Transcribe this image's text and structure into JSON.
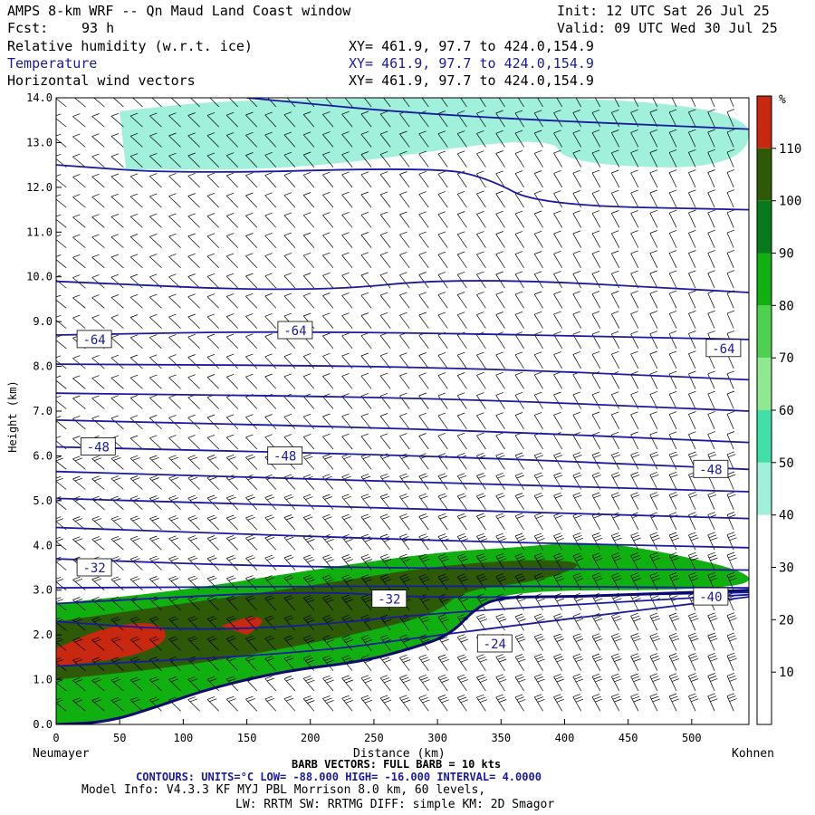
{
  "header": {
    "title": "AMPS 8-km WRF -- Qn Maud Land Coast window",
    "init": "Init: 12 UTC Sat 26 Jul 25",
    "fcst_label": "Fcst:",
    "fcst_value": "93 h",
    "valid": "Valid: 09 UTC Wed 30 Jul 25",
    "fields": [
      {
        "name": "Relative humidity (w.r.t. ice)",
        "xy": "XY= 461.9, 97.7 to 424.0,154.9"
      },
      {
        "name": "Temperature",
        "xy": "XY= 461.9, 97.7 to 424.0,154.9"
      },
      {
        "name": "Horizontal wind vectors",
        "xy": "XY= 461.9, 97.7 to 424.0,154.9"
      }
    ]
  },
  "chart_data": {
    "type": "heatmap",
    "title": "AMPS 8-km WRF -- Qn Maud Land Coast window",
    "xlabel": "Distance (km)",
    "ylabel": "Height (km)",
    "xlim": [
      0,
      545
    ],
    "ylim": [
      0,
      14
    ],
    "x_ticks": [
      "0",
      "50",
      "100",
      "150",
      "200",
      "250",
      "300",
      "350",
      "400",
      "450",
      "500"
    ],
    "y_ticks": [
      "0.0",
      "1.0",
      "2.0",
      "3.0",
      "4.0",
      "5.0",
      "6.0",
      "7.0",
      "8.0",
      "9.0",
      "10.0",
      "11.0",
      "12.0",
      "13.0",
      "14.0"
    ],
    "left_endpoint": "Neumayer",
    "right_endpoint": "Kohnen",
    "colorbar": {
      "unit": "%",
      "labels": [
        "10",
        "20",
        "30",
        "40",
        "50",
        "60",
        "70",
        "80",
        "90",
        "100",
        "110"
      ],
      "colors": [
        "#ffffff",
        "#ffffff",
        "#ffffff",
        "#a0f0dc",
        "#40e0a8",
        "#90e890",
        "#50d050",
        "#10b010",
        "#067a1c",
        "#2e5a08",
        "#c82810"
      ]
    },
    "rh_regions": [
      {
        "level": "30-40%",
        "color": "#a0f0dc",
        "outline": [
          [
            50,
            13.7
          ],
          [
            150,
            14
          ],
          [
            545,
            14
          ],
          [
            545,
            12.4
          ],
          [
            400,
            12.5
          ],
          [
            390,
            13.2
          ],
          [
            200,
            12.4
          ],
          [
            55,
            12.4
          ]
        ]
      },
      {
        "level": ">=50%",
        "color": "#10b010",
        "outline": [
          [
            0,
            2.7
          ],
          [
            100,
            3.0
          ],
          [
            200,
            3.45
          ],
          [
            300,
            3.85
          ],
          [
            360,
            3.95
          ],
          [
            420,
            4.1
          ],
          [
            480,
            3.85
          ],
          [
            545,
            3.4
          ],
          [
            545,
            3.1
          ],
          [
            480,
            3.0
          ],
          [
            400,
            3.0
          ],
          [
            350,
            2.9
          ],
          [
            330,
            2.6
          ],
          [
            310,
            2.0
          ],
          [
            280,
            1.7
          ],
          [
            240,
            1.4
          ],
          [
            180,
            1.2
          ],
          [
            120,
            0.8
          ],
          [
            80,
            0.4
          ],
          [
            40,
            0.05
          ],
          [
            0,
            0
          ]
        ]
      },
      {
        "level": ">=100%",
        "color": "#2e5a08",
        "outline": [
          [
            0,
            2.3
          ],
          [
            100,
            2.7
          ],
          [
            200,
            3.1
          ],
          [
            300,
            3.55
          ],
          [
            380,
            3.7
          ],
          [
            420,
            3.6
          ],
          [
            380,
            3.2
          ],
          [
            320,
            3.0
          ],
          [
            300,
            2.5
          ],
          [
            250,
            2.1
          ],
          [
            180,
            1.7
          ],
          [
            100,
            1.3
          ],
          [
            0,
            1.0
          ]
        ]
      },
      {
        "level": ">=110%",
        "color": "#c82810",
        "outline": [
          [
            0,
            1.7
          ],
          [
            40,
            2.2
          ],
          [
            80,
            2.3
          ],
          [
            90,
            1.9
          ],
          [
            60,
            1.5
          ],
          [
            0,
            1.3
          ]
        ]
      },
      {
        "level": ">=110%",
        "color": "#c82810",
        "outline": [
          [
            130,
            2.2
          ],
          [
            155,
            2.45
          ],
          [
            165,
            2.3
          ],
          [
            150,
            2.0
          ]
        ]
      }
    ],
    "terrain": [
      [
        0,
        0
      ],
      [
        40,
        0.05
      ],
      [
        80,
        0.4
      ],
      [
        120,
        0.8
      ],
      [
        180,
        1.2
      ],
      [
        240,
        1.4
      ],
      [
        280,
        1.7
      ],
      [
        310,
        2.0
      ],
      [
        330,
        2.6
      ],
      [
        350,
        2.85
      ],
      [
        400,
        2.85
      ],
      [
        450,
        2.9
      ],
      [
        500,
        2.95
      ],
      [
        545,
        3.0
      ]
    ],
    "temperature_contours_degC": {
      "low": "-88.000",
      "high": "-16.000",
      "interval": "4.0000",
      "lines": [
        [
          [
            0,
            12.5
          ],
          [
            100,
            12.3
          ],
          [
            300,
            12.45
          ],
          [
            340,
            12.2
          ],
          [
            380,
            11.6
          ],
          [
            545,
            11.5
          ]
        ],
        [
          [
            150,
            14
          ],
          [
            300,
            13.6
          ],
          [
            545,
            13.3
          ]
        ],
        [
          [
            0,
            9.9
          ],
          [
            200,
            9.65
          ],
          [
            320,
            10.0
          ],
          [
            545,
            9.65
          ]
        ],
        [
          [
            0,
            8.7
          ],
          [
            200,
            8.8
          ],
          [
            545,
            8.6
          ]
        ],
        [
          [
            0,
            8.05
          ],
          [
            300,
            8.0
          ],
          [
            545,
            7.7
          ]
        ],
        [
          [
            0,
            7.4
          ],
          [
            300,
            7.3
          ],
          [
            545,
            7.0
          ]
        ],
        [
          [
            0,
            6.8
          ],
          [
            300,
            6.6
          ],
          [
            545,
            6.3
          ]
        ],
        [
          [
            0,
            6.2
          ],
          [
            300,
            6.0
          ],
          [
            545,
            5.7
          ]
        ],
        [
          [
            0,
            5.65
          ],
          [
            300,
            5.4
          ],
          [
            545,
            5.2
          ]
        ],
        [
          [
            0,
            5.05
          ],
          [
            300,
            4.8
          ],
          [
            545,
            4.6
          ]
        ],
        [
          [
            0,
            4.4
          ],
          [
            300,
            4.1
          ],
          [
            545,
            3.95
          ]
        ],
        [
          [
            0,
            3.7
          ],
          [
            200,
            3.5
          ],
          [
            545,
            3.45
          ]
        ],
        [
          [
            0,
            3.05
          ],
          [
            300,
            3.1
          ],
          [
            545,
            3.05
          ]
        ],
        [
          [
            0,
            2.7
          ],
          [
            200,
            3.0
          ],
          [
            300,
            2.8
          ],
          [
            545,
            2.95
          ]
        ],
        [
          [
            0,
            2.3
          ],
          [
            100,
            2.1
          ],
          [
            200,
            2.2
          ],
          [
            300,
            2.5
          ],
          [
            545,
            2.9
          ]
        ],
        [
          [
            0,
            1.3
          ],
          [
            200,
            1.6
          ],
          [
            300,
            2.0
          ],
          [
            545,
            2.85
          ]
        ]
      ],
      "labels": [
        {
          "text": "-64",
          "x": 30,
          "y": 8.6
        },
        {
          "text": "-64",
          "x": 188,
          "y": 8.8
        },
        {
          "text": "-64",
          "x": 525,
          "y": 8.4
        },
        {
          "text": "-48",
          "x": 33,
          "y": 6.2
        },
        {
          "text": "-48",
          "x": 180,
          "y": 6.0
        },
        {
          "text": "-48",
          "x": 515,
          "y": 5.7
        },
        {
          "text": "-32",
          "x": 30,
          "y": 3.5
        },
        {
          "text": "-32",
          "x": 262,
          "y": 2.8
        },
        {
          "text": "-40",
          "x": 515,
          "y": 2.85
        },
        {
          "text": "-24",
          "x": 345,
          "y": 1.8
        }
      ]
    },
    "wind": {
      "note": "BARB VECTORS: FULL BARB = 10 kts"
    }
  },
  "footer": {
    "endpoint_left": "Neumayer",
    "distance_label": "Distance (km)",
    "endpoint_right": "Kohnen",
    "barb_text": "BARB VECTORS: FULL BARB = 10 kts",
    "contours_text": "CONTOURS: UNITS=°C LOW= -88.000 HIGH= -16.000 INTERVAL= 4.0000",
    "model_info_1": "Model Info: V4.3.3 KF MYJ PBL Morrison 8.0 km, 60 levels,",
    "model_info_2": "LW: RRTM SW: RRTMG DIFF: simple KM: 2D Smagor"
  }
}
